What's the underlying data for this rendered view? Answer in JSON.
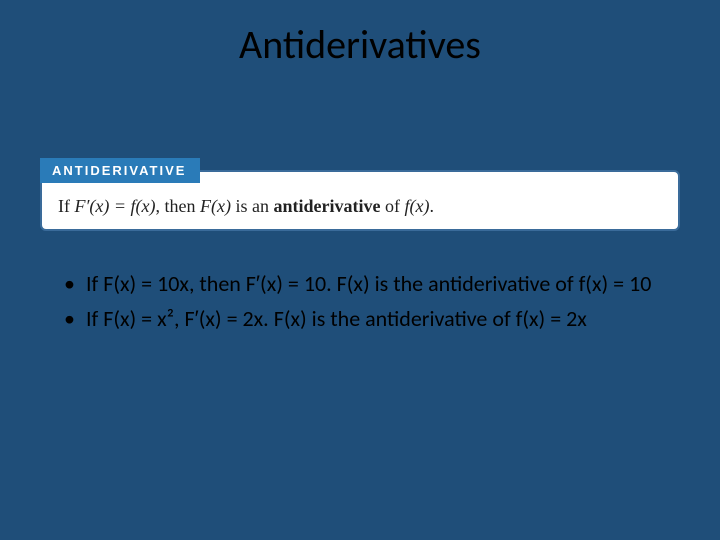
{
  "slide": {
    "background_color": "#1f4e79",
    "title": "Antiderivatives",
    "title_color": "#000000",
    "title_fontsize": 40
  },
  "definition": {
    "label": "ANTIDERIVATIVE",
    "label_bg": "#2a7bb8",
    "label_color": "#ffffff",
    "box_bg": "#ffffff",
    "box_border": "#3a6b9a",
    "text_prefix": "If ",
    "lhs": "F′(x) = f(x)",
    "mid": ", then ",
    "subj": "F(x)",
    "mid2": " is an ",
    "bold": "antiderivative",
    "mid3": " of ",
    "rhs": "f(x)",
    "suffix": "."
  },
  "bullets": {
    "items": [
      "If F(x) = 10x, then F′(x) = 10.  F(x) is the antiderivative of f(x) = 10",
      "If F(x) = x², F′(x) = 2x.  F(x) is the antiderivative of f(x) = 2x"
    ],
    "fontsize": 22,
    "color": "#000000"
  }
}
